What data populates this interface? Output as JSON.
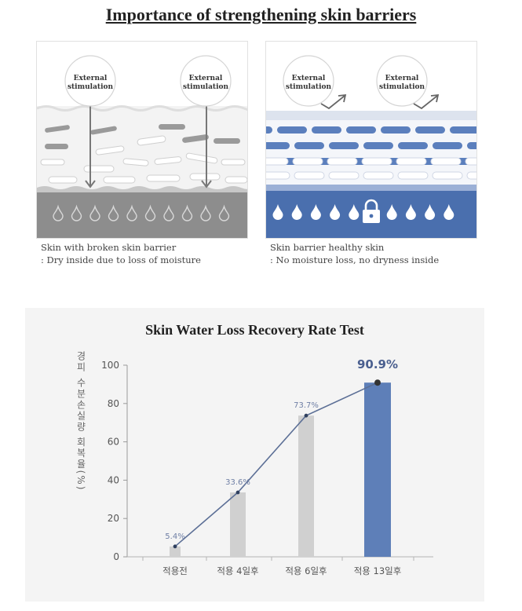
{
  "header": {
    "title": "Importance of strengthening skin barriers"
  },
  "panels": {
    "broken": {
      "bubble": "External stimulation",
      "caption_line1": "Skin with broken skin barrier",
      "caption_line2": ": Dry inside due to loss of moisture",
      "colors": {
        "base": "#8d8d8d",
        "bar": "#9a9a9a"
      }
    },
    "healthy": {
      "bubble": "External stimulation",
      "caption_line1": "Skin barrier healthy skin",
      "caption_line2": ": No moisture loss, no dryness inside",
      "colors": {
        "base": "#4a6fae",
        "bar": "#5b7fbd"
      }
    }
  },
  "chart_data": {
    "type": "bar",
    "title": "Skin Water Loss Recovery Rate Test",
    "ylabel": "경피 수분손실량 회복율(%)",
    "categories": [
      "적용전",
      "적용 4일후",
      "적용 6일후",
      "적용 13일후"
    ],
    "values": [
      5.4,
      33.6,
      73.7,
      90.9
    ],
    "labels": [
      "5.4%",
      "33.6%",
      "73.7%",
      "90.9%"
    ],
    "bar_colors": [
      "#d0d0d0",
      "#d0d0d0",
      "#d0d0d0",
      "#5e7fb8"
    ],
    "line_color": "#5c6f96",
    "ylim": [
      0,
      100
    ],
    "yticks": [
      0,
      20,
      40,
      60,
      80,
      100
    ],
    "grid": false,
    "overlay": "line"
  }
}
